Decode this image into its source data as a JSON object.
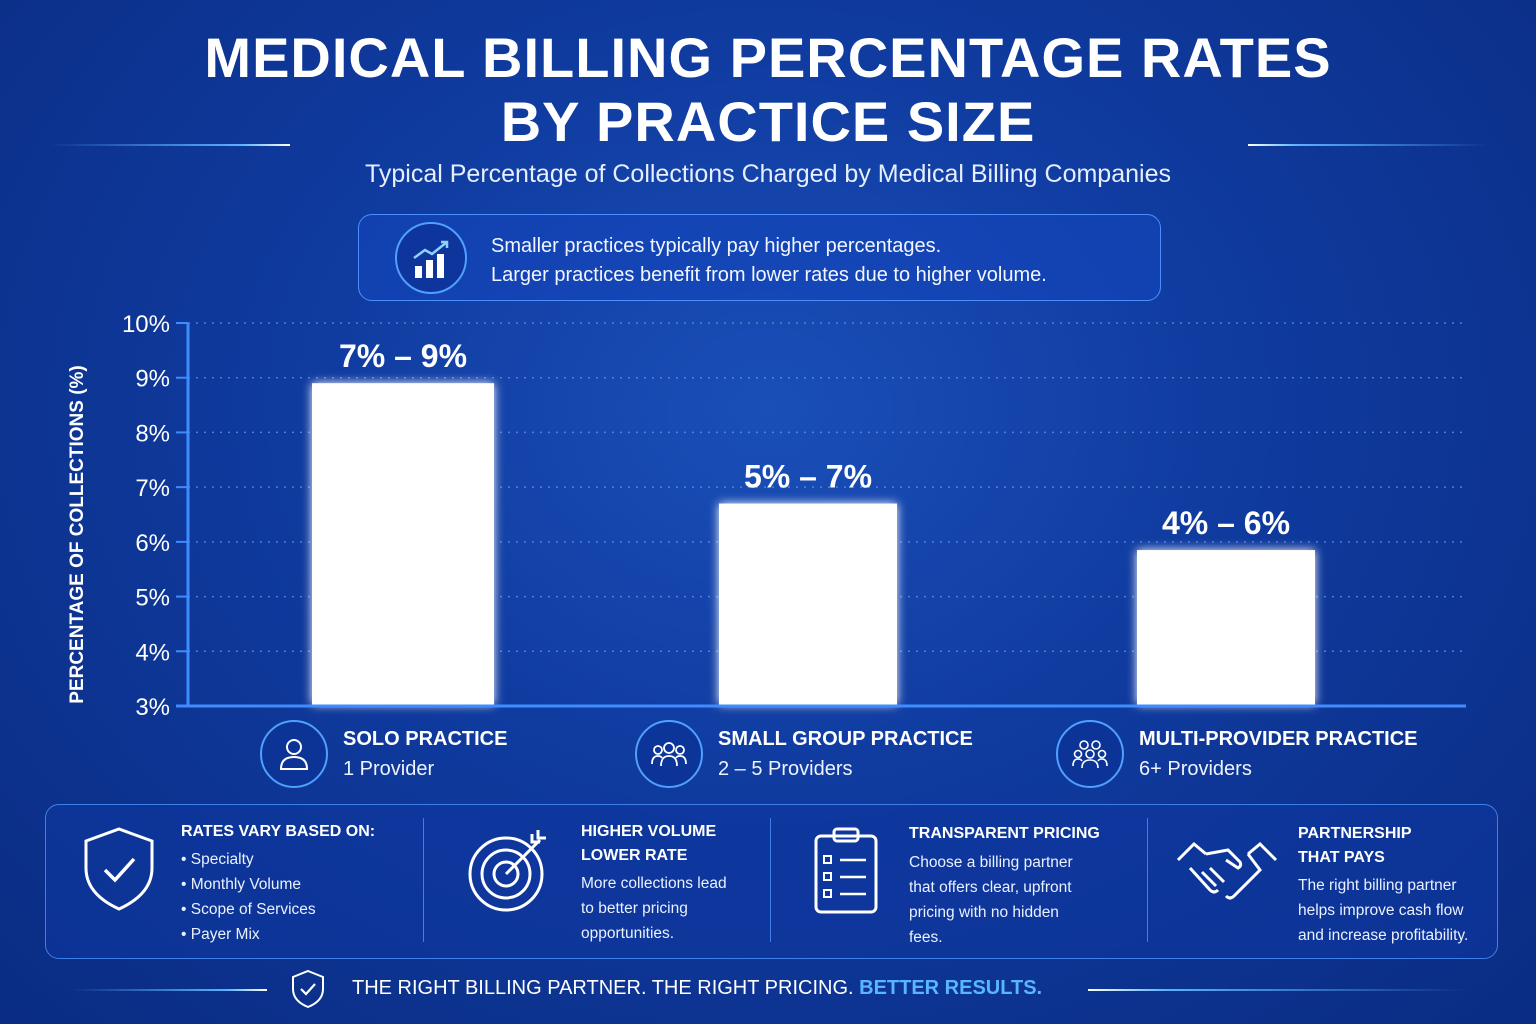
{
  "title_line1": "MEDICAL BILLING PERCENTAGE RATES",
  "title_line2": "BY PRACTICE SIZE",
  "subtitle": "Typical Percentage of Collections Charged by Medical Billing Companies",
  "callout": {
    "icon": "growth-chart-icon",
    "line1": "Smaller practices typically pay higher percentages.",
    "line2": "Larger practices benefit from lower rates due to higher volume."
  },
  "chart_data": {
    "type": "bar",
    "ylabel": "PERCENTAGE OF COLLECTIONS (%)",
    "ylim": [
      3,
      10
    ],
    "yticks": [
      "3%",
      "4%",
      "5%",
      "6%",
      "7%",
      "8%",
      "9%",
      "10%"
    ],
    "categories": [
      "SOLO PRACTICE",
      "SMALL GROUP PRACTICE",
      "MULTI-PROVIDER PRACTICE"
    ],
    "values": [
      8.9,
      6.7,
      5.85
    ],
    "range_labels": [
      "7% – 9%",
      "5% – 7%",
      "4% – 6%"
    ],
    "grid": true,
    "colors": {
      "bar": "#ffffff",
      "axis": "#3f8cff",
      "grid": "#5d8fe6"
    }
  },
  "categories": [
    {
      "title": "SOLO PRACTICE",
      "sub": "1 Provider",
      "icon": "person-icon"
    },
    {
      "title": "SMALL GROUP PRACTICE",
      "sub": "2 – 5 Providers",
      "icon": "group-icon"
    },
    {
      "title": "MULTI-PROVIDER PRACTICE",
      "sub": "6+ Providers",
      "icon": "team-icon"
    }
  ],
  "info": {
    "rates": {
      "title": "RATES VARY BASED ON:",
      "items": [
        "Specialty",
        "Monthly Volume",
        "Scope of Services",
        "Payer Mix"
      ],
      "icon": "shield-check-icon"
    },
    "volume": {
      "title_line1": "HIGHER VOLUME",
      "title_line2": "LOWER RATE",
      "body_line1": "More collections lead",
      "body_line2": "to better pricing",
      "body_line3": "opportunities.",
      "icon": "target-icon"
    },
    "pricing": {
      "title": "TRANSPARENT PRICING",
      "body_line1": "Choose a billing partner",
      "body_line2": "that offers clear, upfront",
      "body_line3": "pricing with no hidden",
      "body_line4": "fees.",
      "icon": "clipboard-icon"
    },
    "partnership": {
      "title_line1": "PARTNERSHIP",
      "title_line2": "THAT PAYS",
      "body_line1": "The right billing partner",
      "body_line2": "helps improve cash flow",
      "body_line3": "and increase profitability.",
      "icon": "handshake-icon"
    }
  },
  "footer": {
    "text": "THE RIGHT BILLING PARTNER. THE RIGHT PRICING.",
    "accent": "BETTER RESULTS.",
    "icon": "shield-check-icon"
  },
  "colors": {
    "accent": "#58b6ff",
    "background": "#0f3a9e"
  }
}
